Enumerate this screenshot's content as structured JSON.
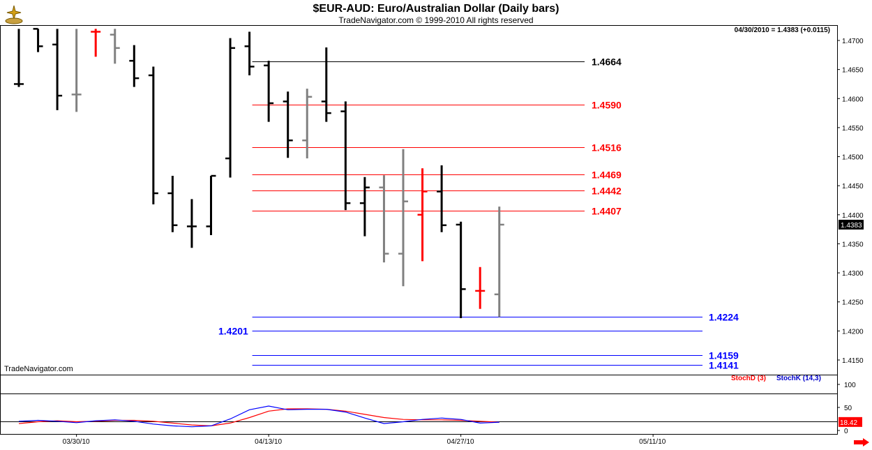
{
  "header": {
    "title": "$EUR-AUD:  Euro/Australian Dollar  (Daily bars)",
    "subtitle": "TradeNavigator.com © 1999-2010 All rights reserved",
    "readout": "04/30/2010 = 1.4383 (+0.0115)",
    "watermark": "TradeNavigator.com"
  },
  "colors": {
    "up_bar": "#000000",
    "gray_bar": "#808080",
    "red": "#ff0000",
    "blue": "#0000ff",
    "stochD": "#ff0000",
    "stochK": "#0000cc"
  },
  "chart_data": [
    {
      "type": "ohlc",
      "title": "$EUR-AUD:  Euro/Australian Dollar  (Daily bars)",
      "xlabel": "",
      "ylabel": "",
      "y_axis_side": "right",
      "ylim": [
        1.413,
        1.4715
      ],
      "y_ticks": [
        1.47,
        1.465,
        1.46,
        1.455,
        1.45,
        1.445,
        1.44,
        1.435,
        1.43,
        1.425,
        1.42,
        1.415
      ],
      "x_date_labels": [
        "03/30/10",
        "04/13/10",
        "04/27/10",
        "05/11/10"
      ],
      "last_price_tag": "1.4383",
      "bars": [
        {
          "i": 0,
          "o": 1.4625,
          "h": 1.472,
          "l": 1.462,
          "c": 1.4625,
          "color": "black"
        },
        {
          "i": 1,
          "o": 1.472,
          "h": 1.472,
          "l": 1.468,
          "c": 1.469,
          "color": "black"
        },
        {
          "i": 2,
          "o": 1.4693,
          "h": 1.472,
          "l": 1.458,
          "c": 1.4605,
          "color": "black"
        },
        {
          "i": 3,
          "o": 1.4607,
          "h": 1.472,
          "l": 1.4577,
          "c": 1.4607,
          "color": "gray"
        },
        {
          "i": 4,
          "o": 1.4715,
          "h": 1.472,
          "l": 1.4672,
          "c": 1.4715,
          "color": "red"
        },
        {
          "i": 5,
          "o": 1.471,
          "h": 1.472,
          "l": 1.466,
          "c": 1.4687,
          "color": "gray"
        },
        {
          "i": 6,
          "o": 1.4665,
          "h": 1.4692,
          "l": 1.462,
          "c": 1.4635,
          "color": "black"
        },
        {
          "i": 7,
          "o": 1.464,
          "h": 1.4655,
          "l": 1.4418,
          "c": 1.4437,
          "color": "black"
        },
        {
          "i": 8,
          "o": 1.4437,
          "h": 1.4467,
          "l": 1.437,
          "c": 1.4382,
          "color": "black"
        },
        {
          "i": 9,
          "o": 1.438,
          "h": 1.4427,
          "l": 1.4343,
          "c": 1.438,
          "color": "black"
        },
        {
          "i": 10,
          "o": 1.438,
          "h": 1.4467,
          "l": 1.4365,
          "c": 1.4467,
          "color": "black"
        },
        {
          "i": 11,
          "o": 1.4497,
          "h": 1.4704,
          "l": 1.4464,
          "c": 1.4687,
          "color": "black"
        },
        {
          "i": 12,
          "o": 1.469,
          "h": 1.4715,
          "l": 1.464,
          "c": 1.4655,
          "color": "black"
        },
        {
          "i": 13,
          "o": 1.4657,
          "h": 1.4665,
          "l": 1.456,
          "c": 1.4592,
          "color": "black"
        },
        {
          "i": 14,
          "o": 1.4595,
          "h": 1.4612,
          "l": 1.4498,
          "c": 1.4528,
          "color": "black"
        },
        {
          "i": 15,
          "o": 1.4528,
          "h": 1.4617,
          "l": 1.4497,
          "c": 1.4603,
          "color": "gray"
        },
        {
          "i": 16,
          "o": 1.4595,
          "h": 1.4688,
          "l": 1.456,
          "c": 1.4575,
          "color": "black"
        },
        {
          "i": 17,
          "o": 1.4578,
          "h": 1.4595,
          "l": 1.4408,
          "c": 1.442,
          "color": "black"
        },
        {
          "i": 18,
          "o": 1.442,
          "h": 1.4465,
          "l": 1.4363,
          "c": 1.4447,
          "color": "black"
        },
        {
          "i": 19,
          "o": 1.4447,
          "h": 1.4468,
          "l": 1.4318,
          "c": 1.4333,
          "color": "gray"
        },
        {
          "i": 20,
          "o": 1.4333,
          "h": 1.4513,
          "l": 1.4277,
          "c": 1.4423,
          "color": "gray"
        },
        {
          "i": 21,
          "o": 1.44,
          "h": 1.448,
          "l": 1.432,
          "c": 1.444,
          "color": "red"
        },
        {
          "i": 22,
          "o": 1.444,
          "h": 1.4485,
          "l": 1.437,
          "c": 1.4382,
          "color": "black"
        },
        {
          "i": 23,
          "o": 1.4383,
          "h": 1.4388,
          "l": 1.4222,
          "c": 1.4272,
          "color": "black"
        },
        {
          "i": 24,
          "o": 1.4269,
          "h": 1.431,
          "l": 1.4238,
          "c": 1.4269,
          "color": "red"
        },
        {
          "i": 25,
          "o": 1.4263,
          "h": 1.4414,
          "l": 1.4224,
          "c": 1.4383,
          "color": "gray"
        }
      ],
      "levels": [
        {
          "label": "1.4664",
          "value": 1.4664,
          "color": "black",
          "start_bar": 12
        },
        {
          "label": "1.4590",
          "value": 1.459,
          "color": "red",
          "start_bar": 12
        },
        {
          "label": "1.4516",
          "value": 1.4516,
          "color": "red",
          "start_bar": 12
        },
        {
          "label": "1.4469",
          "value": 1.4469,
          "color": "red",
          "start_bar": 12
        },
        {
          "label": "1.4442",
          "value": 1.4442,
          "color": "red",
          "start_bar": 12
        },
        {
          "label": "1.4407",
          "value": 1.4407,
          "color": "red",
          "start_bar": 12
        },
        {
          "label": "1.4224",
          "value": 1.4224,
          "color": "blue",
          "start_bar": 12
        },
        {
          "label": "1.4201",
          "value": 1.4201,
          "color": "blue",
          "start_bar": 12,
          "label_side": "left"
        },
        {
          "label": "1.4159",
          "value": 1.4159,
          "color": "blue",
          "start_bar": 12
        },
        {
          "label": "1.4141",
          "value": 1.4141,
          "color": "blue",
          "start_bar": 12
        }
      ]
    },
    {
      "type": "line",
      "title": "",
      "ylim": [
        0,
        115
      ],
      "y_ticks": [
        100,
        50,
        0
      ],
      "reference_lines": [
        80,
        20
      ],
      "last_value_tag": "18.42",
      "series": [
        {
          "name": "StochD (3)",
          "color": "red",
          "values": [
            15,
            19,
            21,
            19,
            20,
            22,
            22,
            20,
            16,
            12,
            10,
            16,
            28,
            42,
            47,
            47,
            46,
            42,
            35,
            28,
            24,
            23,
            23,
            22,
            20,
            18
          ]
        },
        {
          "name": "StochK (14,3)",
          "color": "blue",
          "values": [
            20,
            22,
            20,
            17,
            21,
            23,
            20,
            14,
            10,
            8,
            10,
            25,
            45,
            53,
            45,
            46,
            46,
            40,
            27,
            15,
            19,
            24,
            27,
            24,
            16,
            18
          ]
        }
      ]
    }
  ]
}
